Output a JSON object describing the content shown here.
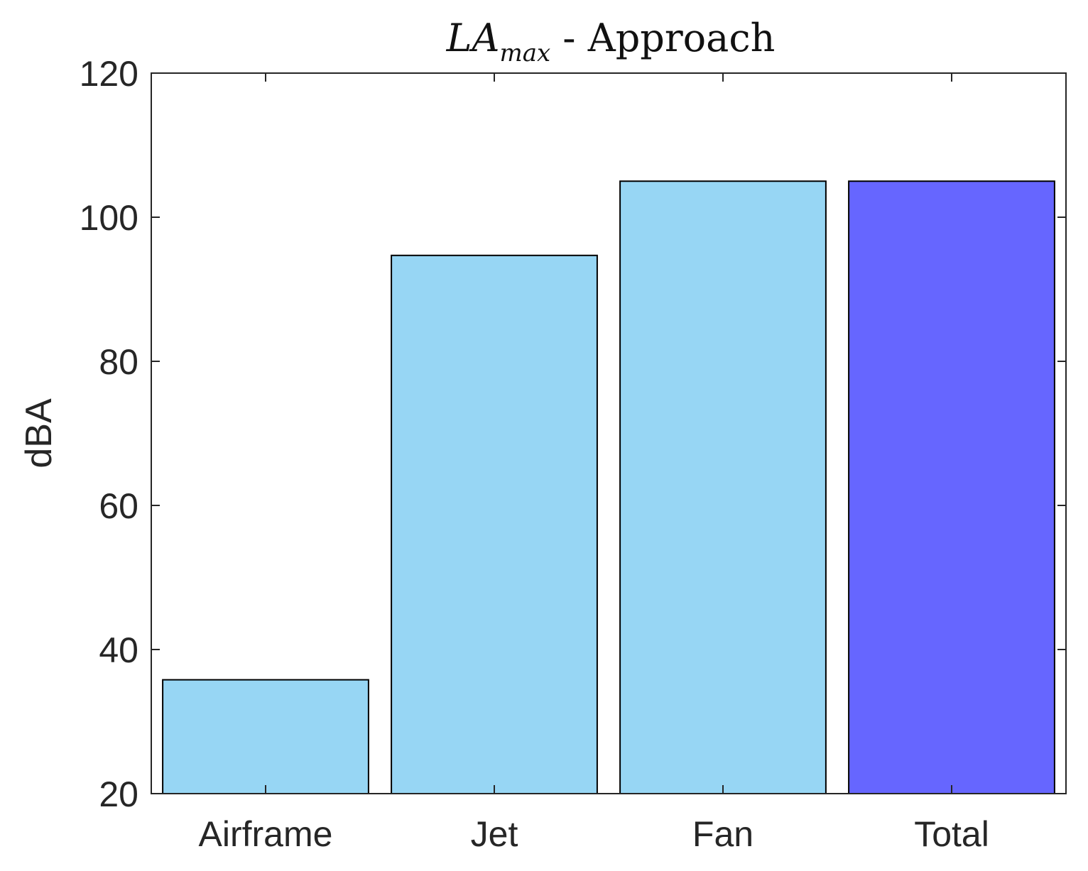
{
  "chart_data": {
    "type": "bar",
    "title": {
      "main": "LA",
      "subscript": "max",
      "suffix": " - Approach"
    },
    "xlabel": "",
    "ylabel": "dBA",
    "categories": [
      "Airframe",
      "Jet",
      "Fan",
      "Total"
    ],
    "values": [
      35.8,
      94.7,
      105,
      105
    ],
    "bar_colors": [
      "#97d6f4",
      "#97d6f4",
      "#97d6f4",
      "#6666ff"
    ],
    "ylim": [
      20,
      120
    ],
    "yticks": [
      20,
      40,
      60,
      80,
      100,
      120
    ],
    "grid": false
  }
}
